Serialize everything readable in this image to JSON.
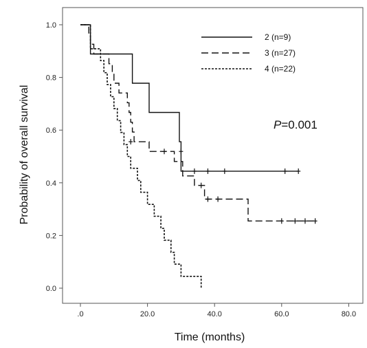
{
  "chart_data": {
    "type": "line",
    "step": true,
    "title": "",
    "xlabel": "Time (months)",
    "ylabel": "Probability of overall survival",
    "xlim": [
      0,
      80
    ],
    "ylim": [
      0,
      1.0
    ],
    "x_ticks": [
      0,
      20,
      40,
      60,
      80
    ],
    "x_tick_labels": [
      ".0",
      "20.0",
      "40.0",
      "60.0",
      "80.0"
    ],
    "y_ticks": [
      0,
      0.2,
      0.4,
      0.6,
      0.8,
      1.0
    ],
    "y_tick_labels": [
      "0.0",
      "0.2",
      "0.4",
      "0.6",
      "0.8",
      "1.0"
    ],
    "grid": false,
    "legend_position": "top-right",
    "annotation": {
      "p_label": "P",
      "p_value": "=0.001"
    },
    "series": [
      {
        "name": "2 (n=9)",
        "style": "solid",
        "points": [
          [
            0,
            1.0
          ],
          [
            3,
            1.0
          ],
          [
            3,
            0.889
          ],
          [
            15.5,
            0.889
          ],
          [
            15.5,
            0.778
          ],
          [
            20.5,
            0.778
          ],
          [
            20.5,
            0.667
          ],
          [
            29.5,
            0.667
          ],
          [
            29.5,
            0.556
          ],
          [
            30,
            0.556
          ],
          [
            30,
            0.444
          ],
          [
            65,
            0.444
          ]
        ],
        "censored": [
          [
            34,
            0.444
          ],
          [
            38,
            0.444
          ],
          [
            43,
            0.444
          ],
          [
            61,
            0.444
          ],
          [
            65,
            0.444
          ]
        ]
      },
      {
        "name": "3 (n=27)",
        "style": "dashed",
        "points": [
          [
            0,
            1.0
          ],
          [
            2.5,
            1.0
          ],
          [
            2.5,
            0.963
          ],
          [
            3,
            0.963
          ],
          [
            3,
            0.926
          ],
          [
            4,
            0.926
          ],
          [
            4,
            0.889
          ],
          [
            8.5,
            0.889
          ],
          [
            8.5,
            0.852
          ],
          [
            9.5,
            0.852
          ],
          [
            9.5,
            0.815
          ],
          [
            10,
            0.815
          ],
          [
            10,
            0.778
          ],
          [
            11.5,
            0.778
          ],
          [
            11.5,
            0.741
          ],
          [
            14,
            0.741
          ],
          [
            14,
            0.704
          ],
          [
            14.5,
            0.704
          ],
          [
            14.5,
            0.667
          ],
          [
            15,
            0.667
          ],
          [
            15,
            0.63
          ],
          [
            15.5,
            0.63
          ],
          [
            15.5,
            0.593
          ],
          [
            16,
            0.593
          ],
          [
            16,
            0.556
          ],
          [
            20.5,
            0.556
          ],
          [
            20.5,
            0.519
          ],
          [
            28,
            0.519
          ],
          [
            28,
            0.481
          ],
          [
            30.5,
            0.481
          ],
          [
            30.5,
            0.426
          ],
          [
            34,
            0.426
          ],
          [
            34,
            0.39
          ],
          [
            37,
            0.39
          ],
          [
            37,
            0.338
          ],
          [
            50,
            0.338
          ],
          [
            50,
            0.255
          ],
          [
            70,
            0.255
          ]
        ],
        "censored": [
          [
            15,
            0.556
          ],
          [
            25,
            0.519
          ],
          [
            30,
            0.519
          ],
          [
            36,
            0.39
          ],
          [
            38,
            0.338
          ],
          [
            41,
            0.338
          ],
          [
            60,
            0.255
          ],
          [
            64,
            0.255
          ],
          [
            67,
            0.255
          ],
          [
            70,
            0.255
          ]
        ]
      },
      {
        "name": "4 (n=22)",
        "style": "dotted",
        "points": [
          [
            0,
            1.0
          ],
          [
            3,
            1.0
          ],
          [
            3,
            0.909
          ],
          [
            6,
            0.909
          ],
          [
            6,
            0.864
          ],
          [
            7,
            0.864
          ],
          [
            7,
            0.818
          ],
          [
            8,
            0.818
          ],
          [
            8,
            0.773
          ],
          [
            9,
            0.773
          ],
          [
            9,
            0.727
          ],
          [
            10,
            0.727
          ],
          [
            10,
            0.682
          ],
          [
            11,
            0.682
          ],
          [
            11,
            0.636
          ],
          [
            12,
            0.636
          ],
          [
            12,
            0.591
          ],
          [
            13,
            0.591
          ],
          [
            13,
            0.545
          ],
          [
            14,
            0.545
          ],
          [
            14,
            0.5
          ],
          [
            15,
            0.5
          ],
          [
            15,
            0.455
          ],
          [
            17,
            0.455
          ],
          [
            17,
            0.409
          ],
          [
            18,
            0.409
          ],
          [
            18,
            0.364
          ],
          [
            20,
            0.364
          ],
          [
            20,
            0.318
          ],
          [
            22,
            0.318
          ],
          [
            22,
            0.273
          ],
          [
            24,
            0.273
          ],
          [
            24,
            0.227
          ],
          [
            25,
            0.227
          ],
          [
            25,
            0.182
          ],
          [
            27,
            0.182
          ],
          [
            27,
            0.136
          ],
          [
            28,
            0.136
          ],
          [
            28,
            0.091
          ],
          [
            30,
            0.091
          ],
          [
            30,
            0.045
          ],
          [
            36,
            0.045
          ],
          [
            36,
            0.0
          ]
        ],
        "censored": []
      }
    ]
  }
}
